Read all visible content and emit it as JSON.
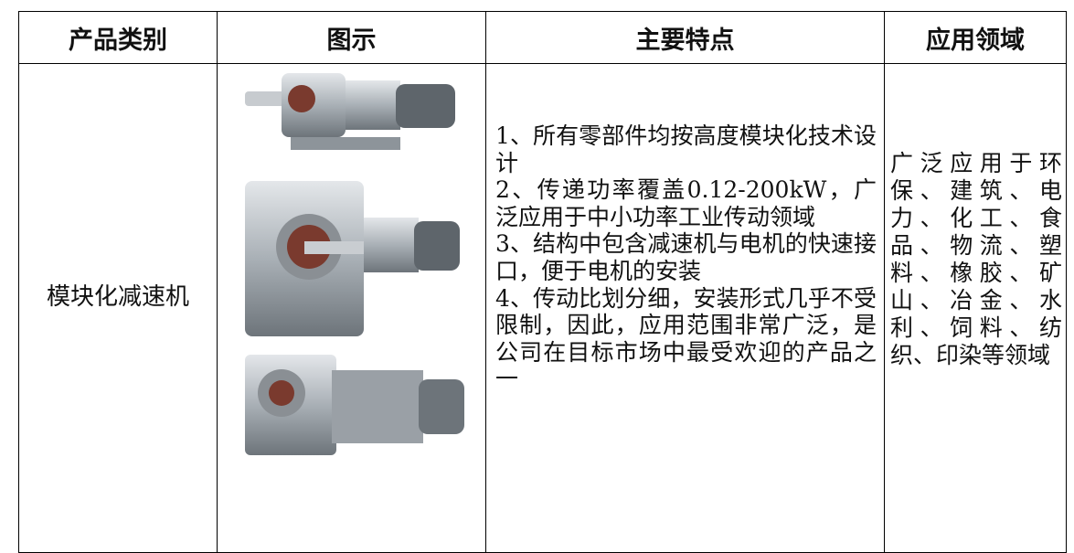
{
  "table": {
    "headers": [
      "产品类别",
      "图示",
      "主要特点",
      "应用领域"
    ],
    "rows": [
      [
        "模块化减速机",
        [
          "1、所有零部件均按高度模块化技术设计",
          "2、传递功率覆盖0.12-200kW，广泛应用于中小功率工业传动领域",
          "3、结构中包含减速机与电机的快速接口，便于电机的安装",
          "4、传动比划分细，安装形式几乎不受限制，因此，应用范围非常广泛，是公司在目标市场中最受欢迎的产品之一"
        ],
        "广泛应用于环保、建筑、电力、化工、食品、物流、塑料、橡胶、矿山、冶金、水利、饲料、纺织、印染等领域"
      ]
    ]
  }
}
